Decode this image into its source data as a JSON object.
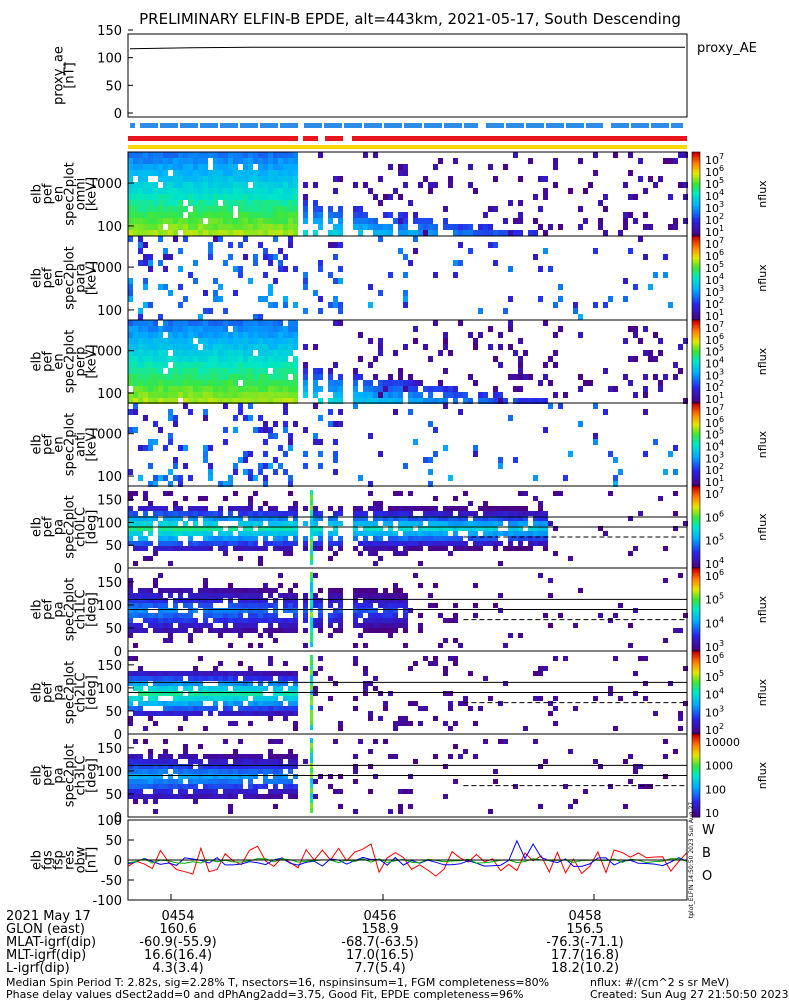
{
  "title": "PRELIMINARY ELFIN-B EPDE, alt=443km, 2021-05-17, South Descending",
  "colors": {
    "red": "#e8141e",
    "blue": "#2e8be6",
    "yellow": "#ffd700",
    "ae": "#000000",
    "w": "#ff0000",
    "b": "#00b000",
    "o": "#0000ff"
  },
  "ae_panel": {
    "ylabel": [
      "proxy_ae",
      "[nT]"
    ],
    "yticks": [
      "150",
      "100",
      "50",
      "0"
    ],
    "legend": "proxy_AE"
  },
  "panels": [
    {
      "ylabel": [
        "elb",
        "pef",
        "en",
        "spec2plot",
        "omni",
        "[keV]"
      ],
      "yticks": [
        "1000",
        "100"
      ],
      "cbar": [
        "10^7",
        "10^6",
        "10^5",
        "10^4",
        "10^3",
        "10^2",
        "10^1"
      ],
      "cbar_label": "nflux"
    },
    {
      "ylabel": [
        "elb",
        "pef",
        "en",
        "spec2plot",
        "para",
        "[keV]"
      ],
      "yticks": [
        "1000",
        "100"
      ],
      "cbar": [
        "10^7",
        "10^6",
        "10^5",
        "10^4",
        "10^3",
        "10^2",
        "10^1"
      ],
      "cbar_label": "nflux"
    },
    {
      "ylabel": [
        "elb",
        "pef",
        "en",
        "spec2plot",
        "perp",
        "[keV]"
      ],
      "yticks": [
        "1000",
        "100"
      ],
      "cbar": [
        "10^7",
        "10^6",
        "10^5",
        "10^4",
        "10^3",
        "10^2",
        "10^1"
      ],
      "cbar_label": "nflux"
    },
    {
      "ylabel": [
        "elb",
        "pef",
        "en",
        "spec2plot",
        "anti",
        "[keV]"
      ],
      "yticks": [
        "1000",
        "100"
      ],
      "cbar": [
        "10^7",
        "10^6",
        "10^5",
        "10^4",
        "10^3",
        "10^2",
        "10^1"
      ],
      "cbar_label": "nflux"
    },
    {
      "ylabel": [
        "elb",
        "pef",
        "pa",
        "spec2plot",
        "ch0LC",
        "[deg]"
      ],
      "yticks": [
        "150",
        "100",
        "50",
        "0"
      ],
      "cbar": [
        "10^7",
        "10^6",
        "10^5",
        "10^4"
      ],
      "cbar_label": "nflux"
    },
    {
      "ylabel": [
        "elb",
        "pef",
        "pa",
        "spec2plot",
        "ch1LC",
        "[deg]"
      ],
      "yticks": [
        "150",
        "100",
        "50",
        "0"
      ],
      "cbar": [
        "10^6",
        "10^5",
        "10^4",
        "10^3"
      ],
      "cbar_label": "nflux"
    },
    {
      "ylabel": [
        "elb",
        "pef",
        "pa",
        "spec2plot",
        "ch2LC",
        "[deg]"
      ],
      "yticks": [
        "150",
        "100",
        "50",
        "0"
      ],
      "cbar": [
        "10^6",
        "10^5",
        "10^4",
        "10^3",
        "10^2"
      ],
      "cbar_label": "nflux"
    },
    {
      "ylabel": [
        "elb",
        "pef",
        "pa",
        "spec2plot",
        "ch3LC",
        "[deg]"
      ],
      "yticks": [
        "150",
        "100",
        "50",
        "0"
      ],
      "cbar": [
        "10000",
        "1000",
        "100",
        "10"
      ],
      "cbar_label": "nflux"
    }
  ],
  "fgm_panel": {
    "ylabel": [
      "elb",
      "fgs",
      "fsp",
      "res",
      "obw",
      "[nT]"
    ],
    "yticks": [
      "100",
      "50",
      "0",
      "-50",
      "-100"
    ],
    "legend": [
      "W",
      "B",
      "O"
    ],
    "stamp": "tplot_ELFIN 14:50:50 2023 Sun Aug 27"
  },
  "chart_data": {
    "type": "heatmap",
    "title": "PRELIMINARY ELFIN-B EPDE, alt=443km, 2021-05-17, South Descending",
    "xticks": [
      "0454",
      "0456",
      "0458"
    ],
    "proxy_ae_series": [
      116,
      118,
      119,
      119,
      119,
      119,
      119,
      119,
      119,
      119
    ],
    "proxy_ae_ylim": [
      0,
      150
    ],
    "fgm_ylim": [
      -100,
      100
    ]
  },
  "ephemeris": {
    "rows": [
      {
        "label": "2021 May 17",
        "v1": "0454",
        "v2": "0456",
        "v3": "0458"
      },
      {
        "label": "GLON (east)",
        "v1": "160.6",
        "v2": "158.9",
        "v3": "156.5"
      },
      {
        "label": "MLAT-igrf(dip)",
        "v1": "-60.9(-55.9)",
        "v2": "-68.7(-63.5)",
        "v3": "-76.3(-71.1)"
      },
      {
        "label": "MLT-igrf(dip)",
        "v1": "16.6(16.4)",
        "v2": "17.0(16.5)",
        "v3": "17.7(16.8)"
      },
      {
        "label": "L-igrf(dip)",
        "v1": "4.3(3.4)",
        "v2": "7.7(5.4)",
        "v3": "18.2(10.2)"
      }
    ]
  },
  "footer": {
    "line1": "Median Spin Period T: 2.82s, sig=2.28% T, nsectors=16, nspinsinsum=1, FGM completeness=80%",
    "line2": "Phase delay values dSect2add=0 and dPhAng2add=3.75, Good Fit, EPDE completeness=96%",
    "units": "nflux: #/(cm^2 s sr MeV)",
    "created": "Created: Sun Aug 27 21:50:50 2023"
  }
}
